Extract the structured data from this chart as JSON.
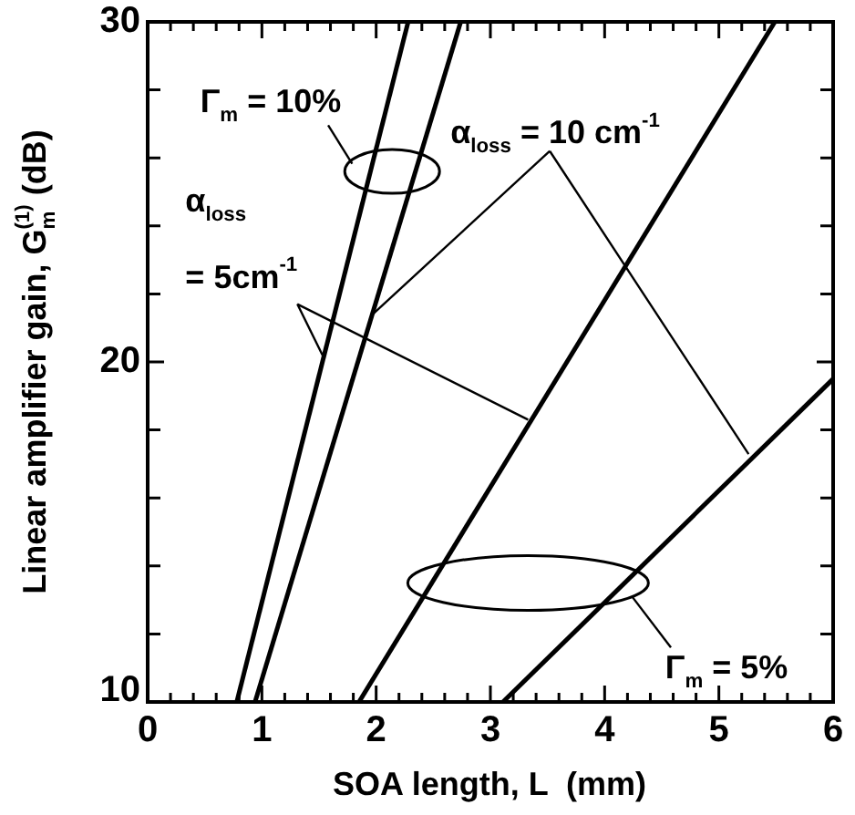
{
  "chart_data": {
    "type": "line",
    "xlabel": "SOA length, L  (mm)",
    "ylabel": "Linear amplifier gain, G$_{m}$$^{(1)}$ (dB)",
    "xlim": [
      0,
      6
    ],
    "ylim": [
      10,
      30
    ],
    "xticks": [
      0,
      {
        "value": 0.2,
        "label": null
      },
      {
        "value": 0.4,
        "label": null
      },
      {
        "value": 0.6,
        "label": null
      },
      {
        "value": 0.8,
        "label": null
      },
      1,
      {
        "value": 1.2,
        "label": null
      },
      {
        "value": 1.4,
        "label": null
      },
      {
        "value": 1.6,
        "label": null
      },
      {
        "value": 1.8,
        "label": null
      },
      2,
      {
        "value": 2.2,
        "label": null
      },
      {
        "value": 2.4,
        "label": null
      },
      {
        "value": 2.6,
        "label": null
      },
      {
        "value": 2.8,
        "label": null
      },
      3,
      {
        "value": 3.2,
        "label": null
      },
      {
        "value": 3.4,
        "label": null
      },
      {
        "value": 3.6,
        "label": null
      },
      {
        "value": 3.8,
        "label": null
      },
      4,
      {
        "value": 4.2,
        "label": null
      },
      {
        "value": 4.4,
        "label": null
      },
      {
        "value": 4.6,
        "label": null
      },
      {
        "value": 4.8,
        "label": null
      },
      5,
      {
        "value": 5.2,
        "label": null
      },
      {
        "value": 5.4,
        "label": null
      },
      {
        "value": 5.6,
        "label": null
      },
      {
        "value": 5.8,
        "label": null
      },
      6
    ],
    "yticks": [
      10,
      {
        "value": 12,
        "label": null
      },
      {
        "value": 14,
        "label": null
      },
      {
        "value": 16,
        "label": null
      },
      {
        "value": 18,
        "label": null
      },
      20,
      {
        "value": 22,
        "label": null
      },
      {
        "value": 24,
        "label": null
      },
      {
        "value": 26,
        "label": null
      },
      {
        "value": 28,
        "label": null
      },
      30
    ],
    "series": [
      {
        "color": "#000000",
        "x": [
          0.78,
          2.28
        ],
        "values": [
          10,
          30
        ]
      },
      {
        "color": "#000000",
        "x": [
          0.94,
          2.74
        ],
        "values": [
          10,
          30
        ]
      },
      {
        "color": "#000000",
        "x": [
          1.85,
          5.49
        ],
        "values": [
          10,
          30
        ]
      },
      {
        "color": "#000000",
        "x": [
          3.11,
          6
        ],
        "values": [
          10,
          19.5
        ]
      }
    ],
    "annotations": [
      "Γ$_{m}$ = 10%",
      "α$_{loss}$ = 10 cm$^{-1}$",
      "α$_{loss}$\n= 5cm$^{-1}$",
      "Γ$_{m}$ = 5%"
    ],
    "legend": false,
    "grid": false,
    "marker": "none",
    "line_style": "solid"
  }
}
